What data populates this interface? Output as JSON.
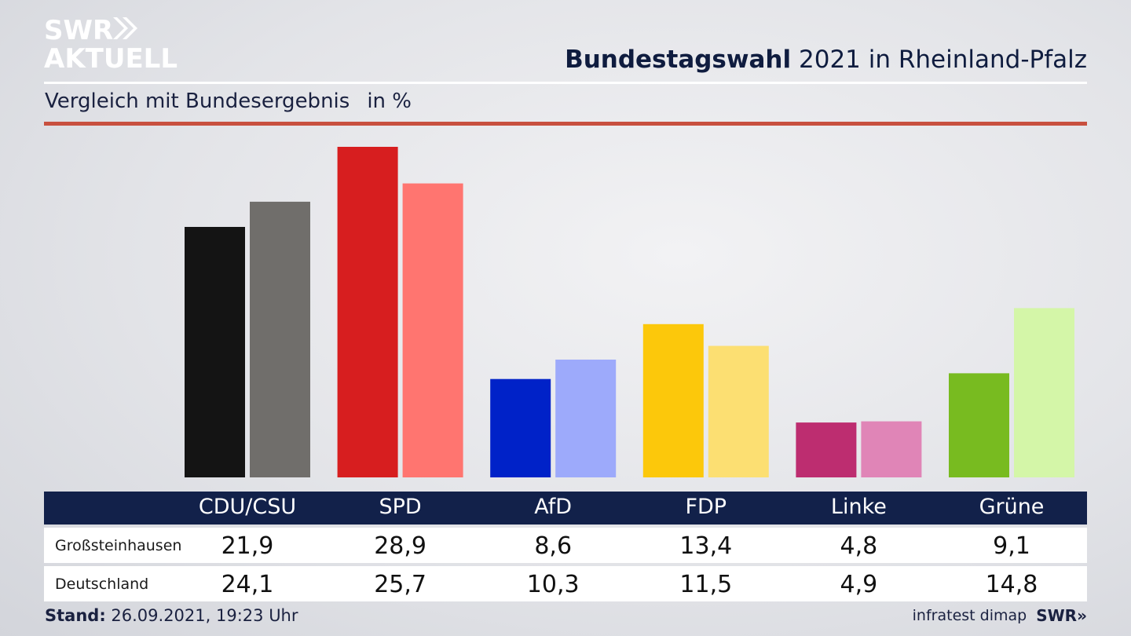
{
  "logo": {
    "line1": "SWR",
    "line2": "AKTUELL"
  },
  "header": {
    "title_bold": "Bundestagswahl",
    "title_rest": "2021 in Rheinland-Pfalz"
  },
  "subtitle": {
    "text": "Vergleich mit Bundesergebnis",
    "unit": "in %"
  },
  "chart_data": {
    "type": "bar",
    "categories": [
      "CDU/CSU",
      "SPD",
      "AfD",
      "FDP",
      "Linke",
      "Grüne"
    ],
    "series": [
      {
        "name": "Großsteinhausen",
        "values": [
          21.9,
          28.9,
          8.6,
          13.4,
          4.8,
          9.1
        ],
        "colors": [
          "#141414",
          "#d71e1f",
          "#0022c8",
          "#fcc80b",
          "#bd2d70",
          "#78bb20"
        ]
      },
      {
        "name": "Deutschland",
        "values": [
          24.1,
          25.7,
          10.3,
          11.5,
          4.9,
          14.8
        ],
        "colors": [
          "#706e6b",
          "#ff7570",
          "#9daafb",
          "#fcdf72",
          "#e085b7",
          "#d4f6a8"
        ]
      }
    ],
    "ylim": [
      0,
      28.9
    ],
    "grid": false
  },
  "footer": {
    "stand_label": "Stand:",
    "stand_value": "26.09.2021, 19:23 Uhr",
    "source": "infratest dimap",
    "brand": "SWR"
  }
}
